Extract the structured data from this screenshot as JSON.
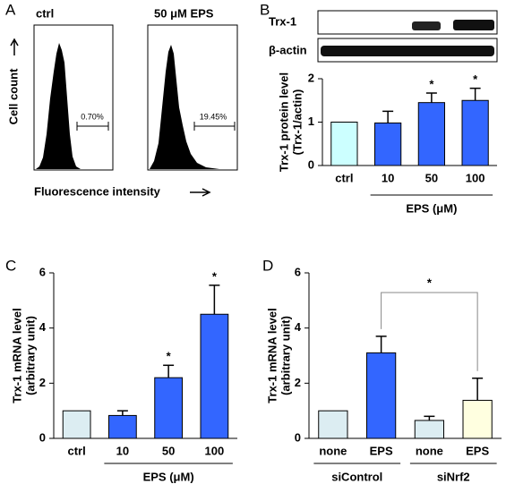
{
  "chart_data": [
    {
      "panel": "A",
      "type": "flow",
      "labels": [
        "ctrl",
        "50 μM  EPS"
      ],
      "gates": [
        "0.70%",
        "19.45%"
      ],
      "y_label": "Cell count",
      "x_label": "Fluorescence intensity"
    },
    {
      "panel": "B",
      "type": "bar",
      "blots": [
        "Trx-1",
        "β-actin"
      ],
      "y_label": [
        "Trx-1 protein level",
        "(Trx-1/actin)"
      ],
      "categories": [
        "ctrl",
        "10",
        "50",
        "100"
      ],
      "values": [
        1,
        0.98,
        1.45,
        1.5
      ],
      "errors": [
        null,
        0.27,
        0.22,
        0.28
      ],
      "colors": [
        "#ccffff",
        "#3366ff",
        "#3366ff",
        "#3366ff"
      ],
      "significance": [
        null,
        null,
        "*",
        "*"
      ],
      "ylim": [
        0,
        2
      ],
      "yticks": [
        0,
        1,
        2
      ],
      "groups": [
        "EPS  (μM)"
      ]
    },
    {
      "panel": "C",
      "type": "bar",
      "y_label": [
        "Trx-1 mRNA level",
        "(arbitrary unit)"
      ],
      "categories": [
        "ctrl",
        "10",
        "50",
        "100"
      ],
      "values": [
        1,
        0.83,
        2.2,
        4.5
      ],
      "errors": [
        null,
        0.17,
        0.45,
        1.05
      ],
      "colors": [
        "#dcedf2",
        "#3366ff",
        "#3366ff",
        "#3366ff"
      ],
      "significance": [
        null,
        null,
        "*",
        "*"
      ],
      "ylim": [
        0,
        6
      ],
      "yticks": [
        0,
        2,
        4,
        6
      ],
      "groups": [
        "EPS  (μM)"
      ]
    },
    {
      "panel": "D",
      "type": "bar",
      "y_label": [
        "Trx-1 mRNA level",
        "(arbitrary unit)"
      ],
      "categories": [
        "none",
        "EPS",
        "none",
        "EPS"
      ],
      "values": [
        1,
        3.1,
        0.65,
        1.38
      ],
      "errors": [
        null,
        0.6,
        0.15,
        0.8
      ],
      "colors": [
        "#dcedf2",
        "#3366ff",
        "#dcedf2",
        "#ffffe0"
      ],
      "significance": [
        null,
        null,
        null,
        null
      ],
      "ylim": [
        0,
        6
      ],
      "yticks": [
        0,
        2,
        4,
        6
      ],
      "groups": [
        "siControl",
        "siNrf2"
      ],
      "comparison": "*"
    }
  ]
}
